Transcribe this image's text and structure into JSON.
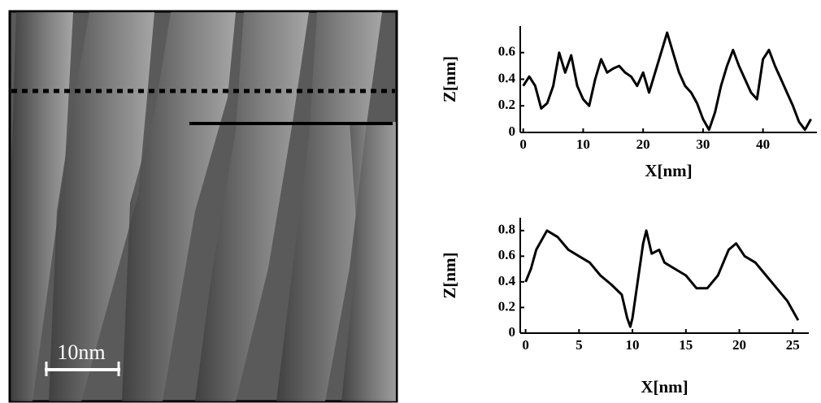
{
  "image": {
    "scale_label": "10nm"
  },
  "chart_data": [
    {
      "type": "line",
      "x_label": "X[nm]",
      "y_label": "Z[nm]",
      "color": "#000000",
      "x": [
        0,
        1,
        2,
        3,
        4,
        5,
        6,
        7,
        8,
        9,
        10,
        11,
        12,
        13,
        14,
        15,
        16,
        17,
        18,
        19,
        20,
        21,
        22,
        23,
        24,
        25,
        26,
        27,
        28,
        29,
        30,
        31,
        32,
        33,
        34,
        35,
        36,
        37,
        38,
        39,
        40,
        41,
        42,
        43,
        44,
        45,
        46,
        47,
        48
      ],
      "values": [
        0.35,
        0.42,
        0.35,
        0.18,
        0.22,
        0.35,
        0.6,
        0.45,
        0.58,
        0.35,
        0.25,
        0.2,
        0.4,
        0.55,
        0.45,
        0.48,
        0.5,
        0.45,
        0.42,
        0.35,
        0.45,
        0.3,
        0.45,
        0.6,
        0.75,
        0.6,
        0.45,
        0.35,
        0.3,
        0.22,
        0.1,
        0.02,
        0.15,
        0.35,
        0.5,
        0.62,
        0.5,
        0.4,
        0.3,
        0.25,
        0.55,
        0.62,
        0.5,
        0.4,
        0.3,
        0.2,
        0.08,
        0.02,
        0.1
      ],
      "xlim": [
        -0.5,
        49
      ],
      "ylim": [
        0,
        0.8
      ],
      "xticks": [
        0,
        10,
        20,
        30,
        40
      ],
      "yticks": [
        0,
        0.2,
        0.4,
        0.6
      ]
    },
    {
      "type": "line",
      "x_label": "X[nm]",
      "y_label": "Z[nm]",
      "color": "#000000",
      "x": [
        0,
        0.5,
        1,
        2,
        3,
        4,
        5,
        6,
        7,
        8,
        9,
        9.5,
        9.8,
        10,
        11,
        11.3,
        11.8,
        12.5,
        13,
        14,
        15,
        16,
        17,
        18,
        19,
        19.7,
        20.5,
        21.5,
        22.5,
        23.5,
        24.5,
        25.5
      ],
      "values": [
        0.4,
        0.5,
        0.65,
        0.8,
        0.75,
        0.65,
        0.6,
        0.55,
        0.45,
        0.38,
        0.3,
        0.12,
        0.05,
        0.12,
        0.7,
        0.8,
        0.62,
        0.65,
        0.55,
        0.5,
        0.45,
        0.35,
        0.35,
        0.45,
        0.65,
        0.7,
        0.6,
        0.55,
        0.45,
        0.35,
        0.25,
        0.1
      ],
      "xlim": [
        -0.5,
        26.5
      ],
      "ylim": [
        0,
        0.9
      ],
      "xticks": [
        0,
        5,
        10,
        15,
        20,
        25
      ],
      "yticks": [
        0,
        0.2,
        0.4,
        0.6,
        0.8
      ]
    }
  ]
}
